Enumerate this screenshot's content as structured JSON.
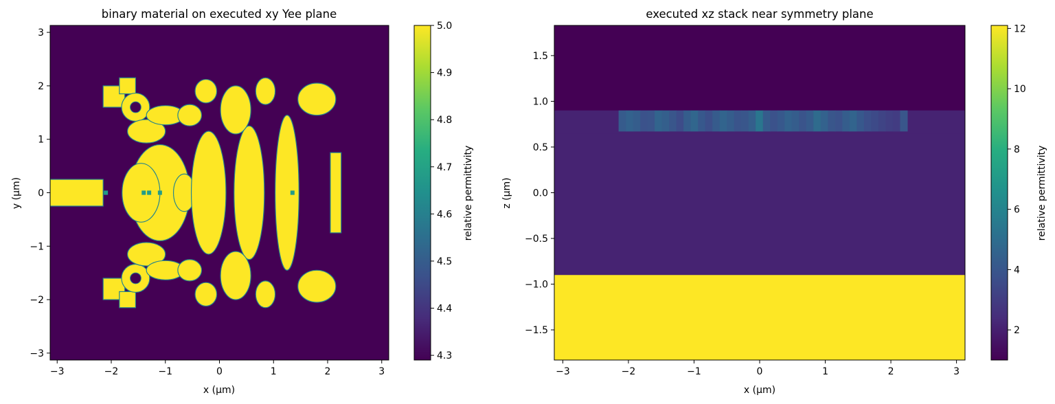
{
  "chart_data": [
    {
      "type": "heatmap",
      "title": "binary material on executed xy Yee plane",
      "xlabel": "x (μm)",
      "ylabel": "y (μm)",
      "xlim": [
        -3.13,
        3.13
      ],
      "ylim": [
        -3.13,
        3.13
      ],
      "x_ticks": [
        -3,
        -2,
        -1,
        0,
        1,
        2,
        3
      ],
      "y_ticks": [
        -3,
        -2,
        -1,
        0,
        1,
        2,
        3
      ],
      "x_tick_labels": [
        "−3",
        "−2",
        "−1",
        "0",
        "1",
        "2",
        "3"
      ],
      "y_tick_labels": [
        "−3",
        "−2",
        "−1",
        "0",
        "1",
        "2",
        "3"
      ],
      "colormap": "viridis",
      "colorbar": {
        "label": "relative permittivity",
        "range": [
          4.29,
          5.0
        ],
        "ticks": [
          4.3,
          4.4,
          4.5,
          4.6,
          4.7,
          4.8,
          4.9,
          5.0
        ],
        "tick_labels": [
          "4.3",
          "4.4",
          "4.5",
          "4.6",
          "4.7",
          "4.8",
          "4.9",
          "5.0"
        ]
      },
      "background_value": 4.29,
      "material_value": 5.0,
      "waveguide_input": {
        "x": [
          -3.13,
          -2.15
        ],
        "y": [
          -0.25,
          0.25
        ]
      },
      "output_waveguide": {
        "x": [
          2.05,
          2.25
        ],
        "y": [
          -0.75,
          0.75
        ]
      },
      "design_region": {
        "x": [
          -2.15,
          2.25
        ],
        "y": [
          -2.15,
          2.15
        ]
      },
      "design_features": [
        {
          "shape": "rect",
          "x": [
            -2.15,
            -1.75
          ],
          "y": [
            1.6,
            2.0
          ]
        },
        {
          "shape": "rect",
          "x": [
            -2.15,
            -1.75
          ],
          "y": [
            -2.0,
            -1.6
          ]
        },
        {
          "shape": "rect",
          "x": [
            -1.85,
            -1.55
          ],
          "y": [
            1.85,
            2.15
          ]
        },
        {
          "shape": "rect",
          "x": [
            -1.85,
            -1.55
          ],
          "y": [
            -2.15,
            -1.85
          ]
        },
        {
          "shape": "ring",
          "center": [
            -1.55,
            1.6
          ],
          "r_outer": 0.26,
          "r_inner": 0.1
        },
        {
          "shape": "ring",
          "center": [
            -1.55,
            -1.6
          ],
          "r_outer": 0.26,
          "r_inner": 0.1
        },
        {
          "shape": "ellipse",
          "center": [
            -1.1,
            0.0
          ],
          "r": [
            0.55,
            0.9
          ]
        },
        {
          "shape": "ellipse",
          "center": [
            -1.45,
            0.0
          ],
          "r": [
            0.35,
            0.55
          ]
        },
        {
          "shape": "ellipse",
          "center": [
            -1.35,
            1.15
          ],
          "r": [
            0.35,
            0.22
          ]
        },
        {
          "shape": "ellipse",
          "center": [
            -1.35,
            -1.15
          ],
          "r": [
            0.35,
            0.22
          ]
        },
        {
          "shape": "ellipse",
          "center": [
            -1.0,
            1.45
          ],
          "r": [
            0.35,
            0.18
          ]
        },
        {
          "shape": "ellipse",
          "center": [
            -1.0,
            -1.45
          ],
          "r": [
            0.35,
            0.18
          ]
        },
        {
          "shape": "ellipse",
          "center": [
            -0.55,
            1.45
          ],
          "r": [
            0.22,
            0.2
          ]
        },
        {
          "shape": "ellipse",
          "center": [
            -0.55,
            -1.45
          ],
          "r": [
            0.22,
            0.2
          ]
        },
        {
          "shape": "ellipse",
          "center": [
            -0.65,
            0.0
          ],
          "r": [
            0.2,
            0.35
          ]
        },
        {
          "shape": "ellipse",
          "center": [
            -0.2,
            0.0
          ],
          "r": [
            0.32,
            1.15
          ]
        },
        {
          "shape": "ellipse",
          "center": [
            -0.25,
            1.9
          ],
          "r": [
            0.2,
            0.22
          ]
        },
        {
          "shape": "ellipse",
          "center": [
            -0.25,
            -1.9
          ],
          "r": [
            0.2,
            0.22
          ]
        },
        {
          "shape": "ellipse",
          "center": [
            0.55,
            0.0
          ],
          "r": [
            0.28,
            1.25
          ]
        },
        {
          "shape": "ellipse",
          "center": [
            0.3,
            1.55
          ],
          "r": [
            0.28,
            0.45
          ]
        },
        {
          "shape": "ellipse",
          "center": [
            0.3,
            -1.55
          ],
          "r": [
            0.28,
            0.45
          ]
        },
        {
          "shape": "ellipse",
          "center": [
            1.25,
            0.0
          ],
          "r": [
            0.22,
            1.45
          ]
        },
        {
          "shape": "ellipse",
          "center": [
            0.85,
            1.9
          ],
          "r": [
            0.18,
            0.25
          ]
        },
        {
          "shape": "ellipse",
          "center": [
            0.85,
            -1.9
          ],
          "r": [
            0.18,
            0.25
          ]
        },
        {
          "shape": "ellipse",
          "center": [
            1.8,
            1.75
          ],
          "r": [
            0.35,
            0.3
          ]
        },
        {
          "shape": "ellipse",
          "center": [
            1.8,
            -1.75
          ],
          "r": [
            0.35,
            0.3
          ]
        }
      ]
    },
    {
      "type": "heatmap",
      "title": "executed xz stack near symmetry plane",
      "xlabel": "x (μm)",
      "ylabel": "z (μm)",
      "xlim": [
        -3.13,
        3.13
      ],
      "ylim": [
        -1.83,
        1.83
      ],
      "x_ticks": [
        -3,
        -2,
        -1,
        0,
        1,
        2,
        3
      ],
      "y_ticks": [
        -1.5,
        -1.0,
        -0.5,
        0.0,
        0.5,
        1.0,
        1.5
      ],
      "x_tick_labels": [
        "−3",
        "−2",
        "−1",
        "0",
        "1",
        "2",
        "3"
      ],
      "y_tick_labels": [
        "−1.5",
        "−1.0",
        "−0.5",
        "0.0",
        "0.5",
        "1.0",
        "1.5"
      ],
      "colormap": "viridis",
      "colorbar": {
        "label": "relative permittivity",
        "range": [
          1.0,
          12.1
        ],
        "ticks": [
          2,
          4,
          6,
          8,
          10,
          12
        ],
        "tick_labels": [
          "2",
          "4",
          "6",
          "8",
          "10",
          "12"
        ]
      },
      "layers": [
        {
          "name": "",
          "z": [
            0.9,
            1.83
          ],
          "x": [
            -3.13,
            3.13
          ],
          "value": 1.0
        },
        {
          "name": "",
          "z": [
            0.65,
            0.9
          ],
          "x": [
            -3.13,
            3.13
          ],
          "value": 2.1
        },
        {
          "name": "",
          "z": [
            -0.9,
            0.65
          ],
          "x": [
            -3.13,
            3.13
          ],
          "value": 2.1
        },
        {
          "name": "",
          "z": [
            -1.83,
            -0.9
          ],
          "x": [
            -3.13,
            3.13
          ],
          "value": 12.1
        }
      ],
      "design_strip": {
        "z": [
          0.67,
          0.9
        ],
        "x": [
          -2.15,
          2.25
        ],
        "values": [
          4.2,
          4.5,
          4.3,
          3.8,
          3.9,
          4.6,
          4.4,
          4.0,
          3.6,
          4.3,
          4.7,
          4.1,
          3.7,
          4.2,
          4.6,
          4.3,
          3.9,
          4.0,
          4.4,
          5.4,
          4.2,
          3.8,
          4.1,
          4.5,
          4.3,
          3.9,
          4.2,
          4.9,
          4.5,
          4.0,
          3.8,
          4.3,
          4.6,
          4.1,
          3.7,
          3.5,
          3.3,
          3.1,
          3.0,
          4.0
        ]
      }
    }
  ]
}
